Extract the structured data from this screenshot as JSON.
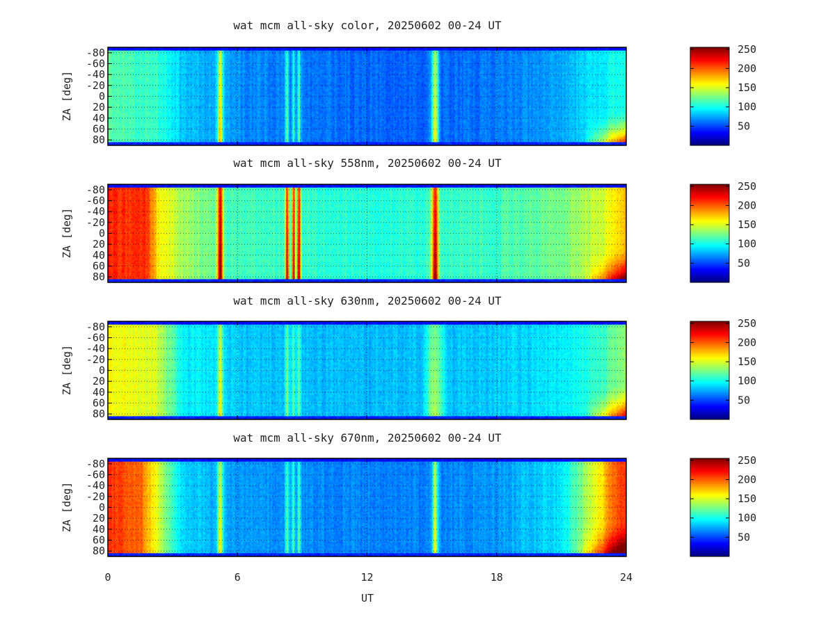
{
  "figure": {
    "xlabel": "UT",
    "colormap": "jet"
  },
  "chart_data": [
    {
      "type": "heatmap",
      "title": "wat mcm all-sky color, 20250602 00-24 UT",
      "ylabel": "ZA [deg]",
      "xlim": [
        0,
        24
      ],
      "ylim": [
        -90,
        90
      ],
      "y_inverted": true,
      "x_ticks": [
        "0",
        "6",
        "12",
        "18",
        "24"
      ],
      "y_ticks": [
        "-80",
        "-60",
        "-40",
        "-20",
        "0",
        "20",
        "40",
        "60",
        "80"
      ],
      "colorbar": {
        "range": [
          0,
          255
        ],
        "ticks": [
          "50",
          "100",
          "150",
          "200",
          "250"
        ]
      },
      "profile": {
        "base": [
          [
            0,
            120
          ],
          [
            2.5,
            105
          ],
          [
            3.5,
            82
          ],
          [
            6,
            68
          ],
          [
            9,
            62
          ],
          [
            12,
            58
          ],
          [
            15,
            58
          ],
          [
            18,
            62
          ],
          [
            21,
            75
          ],
          [
            24,
            105
          ]
        ],
        "bands": [
          [
            5.2,
            0.12,
            95
          ],
          [
            8.3,
            0.08,
            55
          ],
          [
            8.6,
            0.07,
            50
          ],
          [
            8.85,
            0.08,
            55
          ],
          [
            15.15,
            0.15,
            95
          ]
        ],
        "horizon_boost": [
          [
            22,
            24,
            140
          ]
        ]
      }
    },
    {
      "type": "heatmap",
      "title": "wat mcm all-sky 558nm, 20250602 00-24 UT",
      "ylabel": "ZA [deg]",
      "xlim": [
        0,
        24
      ],
      "ylim": [
        -90,
        90
      ],
      "y_inverted": true,
      "x_ticks": [
        "0",
        "6",
        "12",
        "18",
        "24"
      ],
      "y_ticks": [
        "-80",
        "-60",
        "-40",
        "-20",
        "0",
        "20",
        "40",
        "60",
        "80"
      ],
      "colorbar": {
        "range": [
          0,
          255
        ],
        "ticks": [
          "50",
          "100",
          "150",
          "200",
          "250"
        ]
      },
      "profile": {
        "base": [
          [
            0,
            215
          ],
          [
            1.8,
            210
          ],
          [
            2.3,
            165
          ],
          [
            3.5,
            135
          ],
          [
            6,
            112
          ],
          [
            12,
            105
          ],
          [
            15,
            108
          ],
          [
            18,
            112
          ],
          [
            21,
            125
          ],
          [
            23,
            150
          ],
          [
            24,
            175
          ]
        ],
        "bands": [
          [
            5.2,
            0.12,
            135
          ],
          [
            8.3,
            0.08,
            135
          ],
          [
            8.6,
            0.07,
            135
          ],
          [
            8.85,
            0.08,
            135
          ],
          [
            15.15,
            0.15,
            135
          ]
        ],
        "horizon_boost": [
          [
            22,
            24,
            110
          ]
        ]
      }
    },
    {
      "type": "heatmap",
      "title": "wat mcm all-sky 630nm, 20250602 00-24 UT",
      "ylabel": "ZA [deg]",
      "xlim": [
        0,
        24
      ],
      "ylim": [
        -90,
        90
      ],
      "y_inverted": true,
      "x_ticks": [
        "0",
        "6",
        "12",
        "18",
        "24"
      ],
      "y_ticks": [
        "-80",
        "-60",
        "-40",
        "-20",
        "0",
        "20",
        "40",
        "60",
        "80"
      ],
      "colorbar": {
        "range": [
          0,
          255
        ],
        "ticks": [
          "50",
          "100",
          "150",
          "200",
          "250"
        ]
      },
      "profile": {
        "base": [
          [
            0,
            160
          ],
          [
            2.2,
            150
          ],
          [
            3.5,
            95
          ],
          [
            6,
            82
          ],
          [
            12,
            78
          ],
          [
            15,
            80
          ],
          [
            18,
            82
          ],
          [
            21,
            92
          ],
          [
            23,
            112
          ],
          [
            24,
            135
          ]
        ],
        "bands": [
          [
            5.2,
            0.12,
            75
          ],
          [
            8.3,
            0.08,
            45
          ],
          [
            8.6,
            0.07,
            40
          ],
          [
            8.85,
            0.08,
            45
          ],
          [
            15.15,
            0.4,
            55
          ]
        ],
        "horizon_boost": [
          [
            22,
            24,
            120
          ]
        ]
      }
    },
    {
      "type": "heatmap",
      "title": "wat mcm all-sky 670nm, 20250602 00-24 UT",
      "ylabel": "ZA [deg]",
      "xlim": [
        0,
        24
      ],
      "ylim": [
        -90,
        90
      ],
      "y_inverted": true,
      "x_ticks": [
        "0",
        "6",
        "12",
        "18",
        "24"
      ],
      "y_ticks": [
        "-80",
        "-60",
        "-40",
        "-20",
        "0",
        "20",
        "40",
        "60",
        "80"
      ],
      "colorbar": {
        "range": [
          0,
          255
        ],
        "ticks": [
          "50",
          "100",
          "150",
          "200",
          "250"
        ]
      },
      "profile": {
        "base": [
          [
            0,
            210
          ],
          [
            1.5,
            200
          ],
          [
            2.5,
            140
          ],
          [
            3.5,
            85
          ],
          [
            6,
            70
          ],
          [
            12,
            65
          ],
          [
            15,
            65
          ],
          [
            18,
            70
          ],
          [
            21,
            90
          ],
          [
            22.5,
            150
          ],
          [
            23.5,
            200
          ],
          [
            24,
            210
          ]
        ],
        "bands": [
          [
            5.2,
            0.12,
            85
          ],
          [
            8.3,
            0.08,
            55
          ],
          [
            8.6,
            0.07,
            50
          ],
          [
            8.85,
            0.08,
            55
          ],
          [
            15.15,
            0.12,
            85
          ]
        ],
        "horizon_boost": [
          [
            21.5,
            24,
            100
          ]
        ]
      }
    }
  ]
}
